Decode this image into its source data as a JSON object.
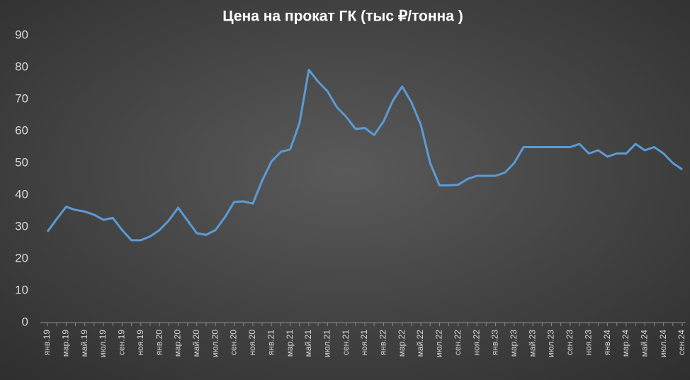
{
  "chart_data": {
    "type": "line",
    "title": "Цена на прокат ГК (тыс ₽/тонна )",
    "categories": [
      "янв.19",
      null,
      "мар.19",
      null,
      "май.19",
      null,
      "июл.19",
      null,
      "сен.19",
      null,
      "ноя.19",
      null,
      "янв.20",
      null,
      "мар.20",
      null,
      "май.20",
      null,
      "июл.20",
      null,
      "сен.20",
      null,
      "ноя.20",
      null,
      "янв.21",
      null,
      "мар.21",
      null,
      "май.21",
      null,
      "июл.21",
      null,
      "сен.21",
      null,
      "ноя.21",
      null,
      "янв.22",
      null,
      "мар.22",
      null,
      "май.22",
      null,
      "июл.22",
      null,
      "сен.22",
      null,
      "ноя.22",
      null,
      "янв.23",
      null,
      "мар.23",
      null,
      "май.23",
      null,
      "июл.23",
      null,
      "сен.23",
      null,
      "ноя.23",
      null,
      "янв.24",
      null,
      "мар.24",
      null,
      "май.24",
      null,
      "июл.24",
      null,
      "сен.24"
    ],
    "series": [
      {
        "name": "Цена",
        "color": "#5b9bd5",
        "values": [
          28.5,
          32.5,
          36.3,
          35.3,
          34.8,
          33.8,
          32.2,
          32.8,
          29,
          25.8,
          25.8,
          27,
          29,
          32,
          36,
          32,
          28,
          27.5,
          29,
          33,
          37.8,
          38,
          37.3,
          44.5,
          50.5,
          53.5,
          54.3,
          62.5,
          79.2,
          75.5,
          72.5,
          67.5,
          64.5,
          60.7,
          61,
          58.8,
          63,
          69.5,
          74,
          69,
          62,
          50,
          43,
          43,
          43.2,
          45,
          46,
          46,
          46,
          47,
          50,
          55,
          55,
          55,
          55,
          55,
          55,
          56,
          53,
          54,
          52,
          53,
          53,
          56,
          54,
          55,
          53,
          50,
          48
        ]
      }
    ],
    "ylim": [
      0,
      90
    ],
    "yticks": [
      0,
      10,
      20,
      30,
      40,
      50,
      60,
      70,
      80,
      90
    ],
    "grid": false
  }
}
